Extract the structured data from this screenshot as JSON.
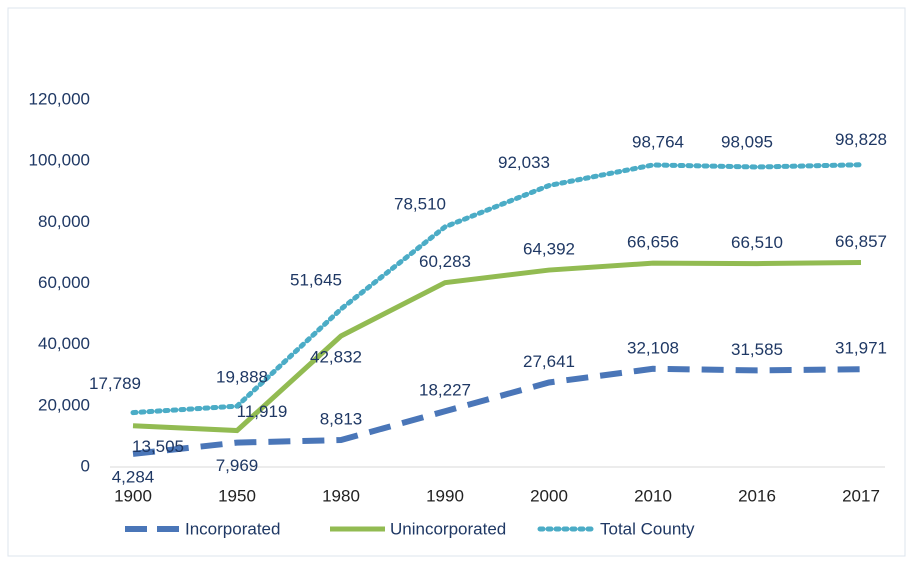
{
  "chart_data": {
    "type": "line",
    "categories": [
      "1900",
      "1950",
      "1980",
      "1990",
      "2000",
      "2010",
      "2016",
      "2017"
    ],
    "series": [
      {
        "name": "Incorporated",
        "color": "#4a76b8",
        "style": "dashed",
        "values": [
          4284,
          7969,
          8813,
          18227,
          27641,
          32108,
          31585,
          31971
        ],
        "value_labels": [
          "4,284",
          "7,969",
          "8,813",
          "18,227",
          "27,641",
          "32,108",
          "31,585",
          "31,971"
        ]
      },
      {
        "name": "Unincorporated",
        "color": "#92bb52",
        "style": "solid",
        "values": [
          13505,
          11919,
          42832,
          60283,
          64392,
          66656,
          66510,
          66857
        ],
        "value_labels": [
          "13,505",
          "11,919",
          "42,832",
          "60,283",
          "64,392",
          "66,656",
          "66,510",
          "66,857"
        ]
      },
      {
        "name": "Total County",
        "color": "#4bacc6",
        "style": "dotted",
        "values": [
          17789,
          19888,
          51645,
          78510,
          92033,
          98764,
          98095,
          98828
        ],
        "value_labels": [
          "17,789",
          "19,888",
          "51,645",
          "78,510",
          "92,033",
          "98,764",
          "98,095",
          "98,828"
        ]
      }
    ],
    "ylim": [
      0,
      120000
    ],
    "yticks": [
      0,
      {
        "value": 20000,
        "label": "20,000"
      },
      {
        "value": 40000,
        "label": "40,000"
      },
      {
        "value": 60000,
        "label": "60,000"
      },
      {
        "value": 80000,
        "label": "80,000"
      },
      {
        "value": 100000,
        "label": "100,000"
      },
      {
        "value": 120000,
        "label": "120,000"
      }
    ],
    "legend": "bottom"
  }
}
